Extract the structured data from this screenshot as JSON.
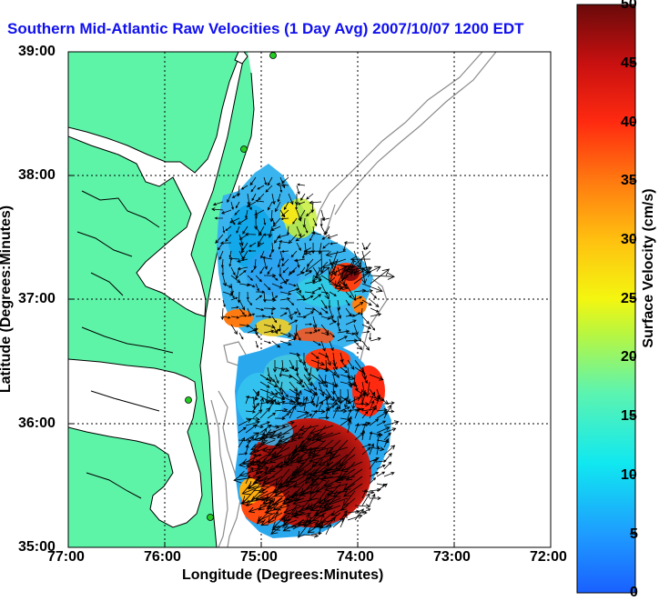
{
  "title": "Southern Mid-Atlantic Raw Velocities (1 Day Avg) 2007/10/07 1200 EDT",
  "x_axis": {
    "label": "Longitude (Degrees:Minutes)",
    "ticks": [
      "77:00",
      "76:00",
      "75:00",
      "74:00",
      "73:00",
      "72:00"
    ]
  },
  "y_axis": {
    "label": "Latitude (Degrees:Minutes)",
    "ticks": [
      "39:00",
      "38:00",
      "37:00",
      "36:00",
      "35:00"
    ]
  },
  "colorbar": {
    "label": "Surface Velocity (cm/s)",
    "ticks": [
      "50",
      "45",
      "40",
      "35",
      "30",
      "25",
      "20",
      "15",
      "10",
      "5",
      "0"
    ],
    "range": [
      0,
      50
    ]
  },
  "colors": {
    "land": "#5ef4a8",
    "coast_line": "#000000",
    "bathymetry": "#8c8c8c",
    "station": "#22cc22",
    "title": "#1010ee"
  }
}
